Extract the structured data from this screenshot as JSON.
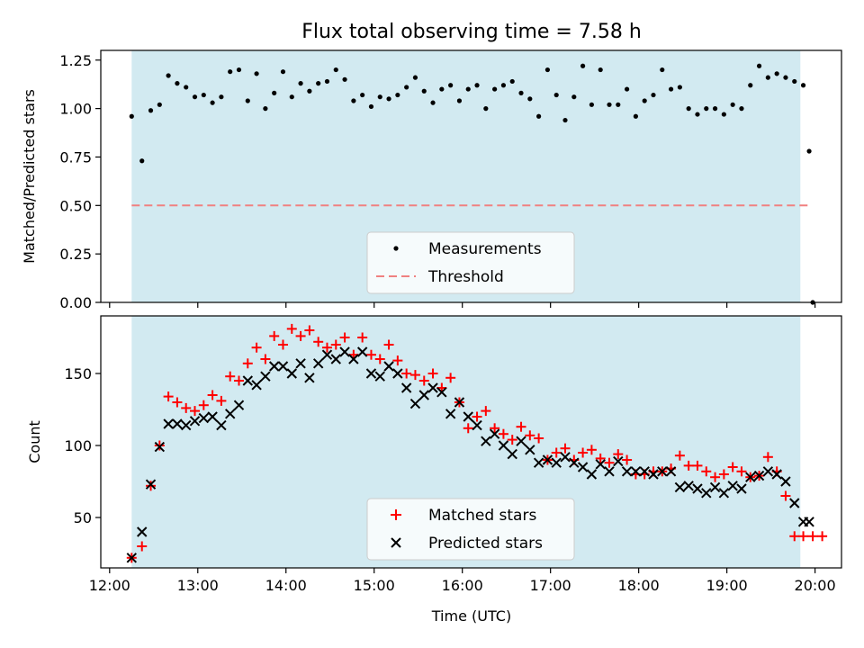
{
  "chart_data": [
    {
      "type": "scatter",
      "title": "Flux total observing time = 7.58 h",
      "ylabel": "Matched/Predicted stars",
      "xlim": [
        "12:00",
        "20:00"
      ],
      "ylim": [
        0,
        1.3
      ],
      "yticks": [
        "0.00",
        "0.25",
        "0.50",
        "0.75",
        "1.00",
        "1.25"
      ],
      "yticks_values": [
        0,
        0.25,
        0.5,
        0.75,
        1.0,
        1.25
      ],
      "shaded_span": [
        "12:15",
        "19:50"
      ],
      "shade_color": "#add8e6",
      "legend_position": "lower center",
      "series": [
        {
          "name": "Measurements",
          "color": "#000000",
          "marker": "dot",
          "x": [
            "12:15",
            "12:22",
            "12:28",
            "12:34",
            "12:40",
            "12:46",
            "12:52",
            "12:58",
            "13:04",
            "13:10",
            "13:16",
            "13:22",
            "13:28",
            "13:34",
            "13:40",
            "13:46",
            "13:52",
            "13:58",
            "14:04",
            "14:10",
            "14:16",
            "14:22",
            "14:28",
            "14:34",
            "14:40",
            "14:46",
            "14:52",
            "14:58",
            "15:04",
            "15:10",
            "15:16",
            "15:22",
            "15:28",
            "15:34",
            "15:40",
            "15:46",
            "15:52",
            "15:58",
            "16:04",
            "16:10",
            "16:16",
            "16:22",
            "16:28",
            "16:34",
            "16:40",
            "16:46",
            "16:52",
            "16:58",
            "17:04",
            "17:10",
            "17:16",
            "17:22",
            "17:28",
            "17:34",
            "17:40",
            "17:46",
            "17:52",
            "17:58",
            "18:04",
            "18:10",
            "18:16",
            "18:22",
            "18:28",
            "18:34",
            "18:40",
            "18:46",
            "18:52",
            "18:58",
            "19:04",
            "19:10",
            "19:16",
            "19:22",
            "19:28",
            "19:34",
            "19:40",
            "19:46",
            "19:52",
            "19:56"
          ],
          "y": [
            0.96,
            0.73,
            0.99,
            1.02,
            1.17,
            1.13,
            1.11,
            1.06,
            1.07,
            1.03,
            1.06,
            1.19,
            1.2,
            1.04,
            1.18,
            1.0,
            1.08,
            1.19,
            1.06,
            1.13,
            1.09,
            1.13,
            1.14,
            1.2,
            1.15,
            1.04,
            1.07,
            1.01,
            1.06,
            1.05,
            1.07,
            1.11,
            1.16,
            1.09,
            1.03,
            1.1,
            1.12,
            1.04,
            1.1,
            1.12,
            1.0,
            1.1,
            1.12,
            1.14,
            1.08,
            1.05,
            0.96,
            1.2,
            1.07,
            0.94,
            1.06,
            1.22,
            1.02,
            1.2,
            1.02,
            1.02,
            1.1,
            0.96,
            1.04,
            1.07,
            1.2,
            1.1,
            1.11,
            1.0,
            0.97,
            1.0,
            1.0,
            0.97,
            1.02,
            1.0,
            1.12,
            1.22,
            1.16,
            1.18,
            1.16,
            1.14,
            1.12,
            0.78
          ],
          "extra_point": {
            "x": "19:56",
            "y": 0.0
          }
        },
        {
          "name": "Threshold",
          "color": "#f08080",
          "style": "dashed",
          "x": [
            "12:15",
            "19:56"
          ],
          "y": [
            0.5,
            0.5
          ]
        }
      ]
    },
    {
      "type": "scatter",
      "xlabel": "Time (UTC)",
      "ylabel": "Count",
      "xlim": [
        "12:00",
        "20:00"
      ],
      "ylim": [
        15,
        190
      ],
      "yticks": [
        "50",
        "100",
        "150"
      ],
      "yticks_values": [
        50,
        100,
        150
      ],
      "xticks": [
        "12:00",
        "13:00",
        "14:00",
        "15:00",
        "16:00",
        "17:00",
        "18:00",
        "19:00",
        "20:00"
      ],
      "shaded_span": [
        "12:15",
        "19:50"
      ],
      "shade_color": "#add8e6",
      "legend_position": "lower center",
      "series": [
        {
          "name": "Matched stars",
          "color": "#ff0000",
          "marker": "plus",
          "x": [
            "12:15",
            "12:22",
            "12:28",
            "12:34",
            "12:40",
            "12:46",
            "12:52",
            "12:58",
            "13:04",
            "13:10",
            "13:16",
            "13:22",
            "13:28",
            "13:34",
            "13:40",
            "13:46",
            "13:52",
            "13:58",
            "14:04",
            "14:10",
            "14:16",
            "14:22",
            "14:28",
            "14:34",
            "14:40",
            "14:46",
            "14:52",
            "14:58",
            "15:04",
            "15:10",
            "15:16",
            "15:22",
            "15:28",
            "15:34",
            "15:40",
            "15:46",
            "15:52",
            "15:58",
            "16:04",
            "16:10",
            "16:16",
            "16:22",
            "16:28",
            "16:34",
            "16:40",
            "16:46",
            "16:52",
            "16:58",
            "17:04",
            "17:10",
            "17:16",
            "17:22",
            "17:28",
            "17:34",
            "17:40",
            "17:46",
            "17:52",
            "17:58",
            "18:04",
            "18:10",
            "18:16",
            "18:22",
            "18:28",
            "18:34",
            "18:40",
            "18:46",
            "18:52",
            "18:58",
            "19:04",
            "19:10",
            "19:16",
            "19:22",
            "19:28",
            "19:34",
            "19:40",
            "19:46",
            "19:52",
            "19:56",
            "20:00"
          ],
          "y": [
            22,
            30,
            72,
            100,
            134,
            130,
            126,
            124,
            128,
            135,
            131,
            148,
            145,
            157,
            168,
            160,
            176,
            170,
            181,
            176,
            180,
            172,
            168,
            170,
            175,
            163,
            175,
            163,
            160,
            170,
            159,
            150,
            149,
            145,
            150,
            140,
            147,
            130,
            112,
            120,
            124,
            112,
            108,
            104,
            113,
            107,
            105,
            90,
            95,
            98,
            90,
            95,
            97,
            91,
            88,
            94,
            90,
            80,
            80,
            82,
            82,
            84,
            93,
            86,
            86,
            82,
            78,
            80,
            85,
            82,
            78,
            79,
            92,
            82,
            65,
            37,
            37,
            37,
            37
          ],
          "y_display_note": ""
        },
        {
          "name": "Predicted stars",
          "color": "#000000",
          "marker": "x",
          "x": [
            "12:15",
            "12:22",
            "12:28",
            "12:34",
            "12:40",
            "12:46",
            "12:52",
            "12:58",
            "13:04",
            "13:10",
            "13:16",
            "13:22",
            "13:28",
            "13:34",
            "13:40",
            "13:46",
            "13:52",
            "13:58",
            "14:04",
            "14:10",
            "14:16",
            "14:22",
            "14:28",
            "14:34",
            "14:40",
            "14:46",
            "14:52",
            "14:58",
            "15:04",
            "15:10",
            "15:16",
            "15:22",
            "15:28",
            "15:34",
            "15:40",
            "15:46",
            "15:52",
            "15:58",
            "16:04",
            "16:10",
            "16:16",
            "16:22",
            "16:28",
            "16:34",
            "16:40",
            "16:46",
            "16:52",
            "16:58",
            "17:04",
            "17:10",
            "17:16",
            "17:22",
            "17:28",
            "17:34",
            "17:40",
            "17:46",
            "17:52",
            "17:58",
            "18:04",
            "18:10",
            "18:16",
            "18:22",
            "18:28",
            "18:34",
            "18:40",
            "18:46",
            "18:52",
            "18:58",
            "19:04",
            "19:10",
            "19:16",
            "19:22",
            "19:28",
            "19:34",
            "19:40",
            "19:46",
            "19:52",
            "19:56"
          ],
          "y": [
            22,
            40,
            73,
            99,
            115,
            115,
            114,
            117,
            119,
            120,
            114,
            122,
            128,
            145,
            142,
            148,
            155,
            155,
            150,
            157,
            147,
            157,
            163,
            160,
            165,
            160,
            165,
            150,
            148,
            155,
            150,
            140,
            129,
            135,
            140,
            137,
            122,
            130,
            120,
            114,
            103,
            108,
            100,
            94,
            103,
            97,
            88,
            90,
            88,
            92,
            88,
            85,
            80,
            87,
            82,
            89,
            82,
            82,
            82,
            80,
            82,
            82,
            71,
            72,
            70,
            67,
            71,
            67,
            72,
            70,
            78,
            79,
            82,
            80,
            75,
            60,
            47,
            47
          ]
        }
      ]
    }
  ]
}
